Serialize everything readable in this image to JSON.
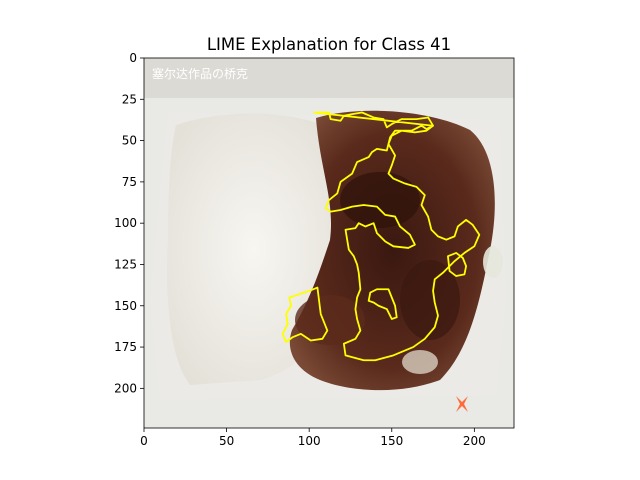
{
  "chart_data": {
    "type": "image",
    "title": "LIME Explanation for Class 41",
    "xlabel": "",
    "ylabel": "",
    "xlim": [
      0,
      224
    ],
    "ylim": [
      224,
      0
    ],
    "x_ticks": [
      0,
      50,
      100,
      150,
      200
    ],
    "y_ticks": [
      0,
      25,
      50,
      75,
      100,
      125,
      150,
      175,
      200
    ],
    "grid": false,
    "image_content": {
      "description_colors": {
        "rice": "#f2f0ea",
        "meat": "#4a2018",
        "container": "#e8e8e6",
        "shadow": "#c9c6c0"
      },
      "overlay_text": "塞尔达作品の桥克",
      "watermark_text": ""
    },
    "boundary": {
      "color": "#ffff00",
      "regions": [
        {
          "name": "main-region",
          "points": [
            [
              103,
              33
            ],
            [
              112,
              33
            ],
            [
              113,
              37
            ],
            [
              119,
              38
            ],
            [
              121,
              35
            ],
            [
              126,
              34
            ],
            [
              132,
              33
            ],
            [
              139,
              36
            ],
            [
              145,
              37
            ],
            [
              147,
              42
            ],
            [
              150,
              40
            ],
            [
              156,
              37
            ],
            [
              165,
              37
            ],
            [
              172,
              36
            ],
            [
              175,
              41
            ],
            [
              171,
              43
            ],
            [
              168,
              41
            ],
            [
              162,
              44
            ],
            [
              152,
              44
            ],
            [
              149,
              48
            ],
            [
              147,
              56
            ],
            [
              141,
              55
            ],
            [
              138,
              57
            ],
            [
              136,
              60
            ],
            [
              129,
              63
            ],
            [
              126,
              70
            ],
            [
              119,
              75
            ],
            [
              117,
              82
            ],
            [
              112,
              86
            ],
            [
              110,
              91
            ],
            [
              113,
              93
            ],
            [
              119,
              92
            ],
            [
              126,
              90
            ],
            [
              133,
              89
            ],
            [
              141,
              90
            ],
            [
              146,
              95
            ],
            [
              152,
              96
            ],
            [
              155,
              102
            ],
            [
              161,
              107
            ],
            [
              164,
              113
            ],
            [
              160,
              115
            ],
            [
              151,
              114
            ],
            [
              146,
              111
            ],
            [
              141,
              106
            ],
            [
              139,
              100
            ],
            [
              134,
              102
            ],
            [
              130,
              100
            ],
            [
              128,
              103
            ],
            [
              122,
              104
            ],
            [
              123,
              110
            ],
            [
              124,
              116
            ],
            [
              127,
              120
            ],
            [
              129,
              125
            ],
            [
              130,
              130
            ],
            [
              131,
              140
            ],
            [
              129,
              145
            ],
            [
              128,
              152
            ],
            [
              129,
              158
            ],
            [
              131,
              165
            ],
            [
              128,
              170
            ],
            [
              121,
              173
            ],
            [
              122,
              180
            ],
            [
              133,
              183
            ],
            [
              140,
              183
            ],
            [
              151,
              180
            ],
            [
              163,
              175
            ],
            [
              170,
              170
            ],
            [
              176,
              163
            ],
            [
              178,
              156
            ],
            [
              176,
              148
            ],
            [
              175,
              141
            ],
            [
              176,
              134
            ],
            [
              181,
              130
            ],
            [
              188,
              123
            ],
            [
              194,
              118
            ],
            [
              200,
              114
            ],
            [
              203,
              107
            ],
            [
              199,
              101
            ],
            [
              195,
              98
            ],
            [
              190,
              102
            ],
            [
              188,
              108
            ],
            [
              183,
              110
            ],
            [
              178,
              108
            ],
            [
              174,
              104
            ],
            [
              172,
              96
            ],
            [
              168,
              89
            ],
            [
              170,
              83
            ],
            [
              165,
              78
            ],
            [
              158,
              76
            ],
            [
              151,
              73
            ],
            [
              148,
              70
            ],
            [
              150,
              65
            ],
            [
              152,
              59
            ],
            [
              148,
              52
            ],
            [
              150,
              47
            ],
            [
              156,
              44
            ],
            [
              164,
              45
            ],
            [
              171,
              44
            ],
            [
              175,
              41
            ]
          ]
        },
        {
          "name": "inner-loop",
          "points": [
            [
              141,
              140
            ],
            [
              148,
              140
            ],
            [
              150,
              145
            ],
            [
              152,
              150
            ],
            [
              153,
              157
            ],
            [
              150,
              158
            ],
            [
              147,
              152
            ],
            [
              142,
              150
            ],
            [
              139,
              148
            ],
            [
              136,
              147
            ],
            [
              137,
              142
            ]
          ]
        },
        {
          "name": "left-region",
          "points": [
            [
              88,
              145
            ],
            [
              94,
              143
            ],
            [
              100,
              141
            ],
            [
              105,
              139
            ],
            [
              106,
              147
            ],
            [
              107,
              155
            ],
            [
              109,
              160
            ],
            [
              111,
              165
            ],
            [
              108,
              170
            ],
            [
              101,
              171
            ],
            [
              95,
              167
            ],
            [
              90,
              169
            ],
            [
              86,
              172
            ],
            [
              84,
              167
            ],
            [
              87,
              161
            ],
            [
              86,
              155
            ],
            [
              89,
              150
            ]
          ]
        },
        {
          "name": "right-small-region",
          "points": [
            [
              184,
              120
            ],
            [
              189,
              118
            ],
            [
              193,
              121
            ],
            [
              195,
              126
            ],
            [
              194,
              131
            ],
            [
              189,
              132
            ],
            [
              185,
              129
            ]
          ]
        }
      ]
    }
  }
}
